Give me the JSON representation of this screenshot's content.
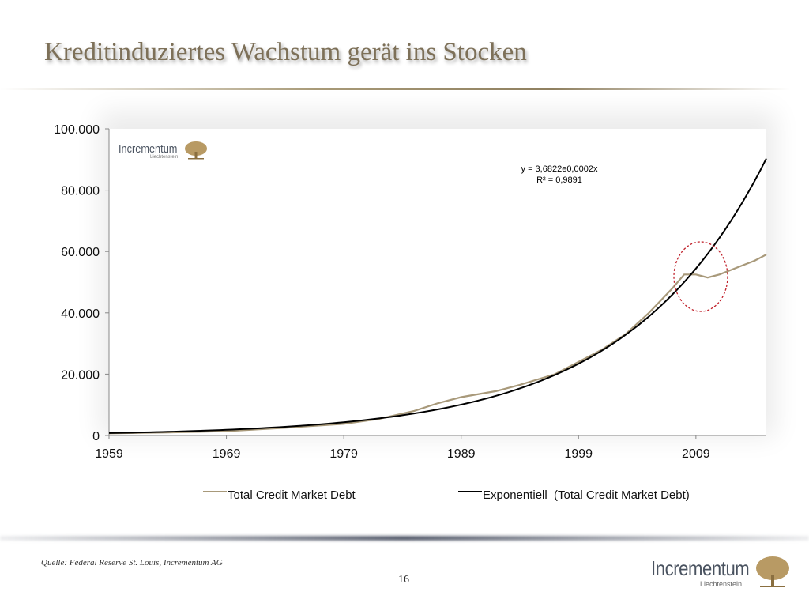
{
  "title": "Kreditinduziertes Wachstum gerät ins Stocken",
  "footer": {
    "source": "Quelle: Federal Reserve St. Louis, Incrementum AG",
    "page": "16",
    "logo_name": "Incrementum",
    "logo_sub": "Liechtenstein"
  },
  "chart_data": {
    "type": "line",
    "xlim": [
      1959,
      2015
    ],
    "ylim": [
      0,
      100000
    ],
    "x_ticks": [
      1959,
      1969,
      1979,
      1989,
      1999,
      2009
    ],
    "x_tick_labels": [
      "1959",
      "1969",
      "1979",
      "1989",
      "1999",
      "2009"
    ],
    "y_ticks": [
      0,
      20000,
      40000,
      60000,
      80000,
      100000
    ],
    "y_tick_labels": [
      "0",
      "20.000",
      "40.000",
      "60.000",
      "80.000",
      "100.000"
    ],
    "trendline": {
      "equation": "y = 3,6822e0,0002x",
      "r2": "R² = 0,9891"
    },
    "annotation": "dashed red ellipse around 2008-2010",
    "legend_position": "bottom",
    "series": [
      {
        "name": "Total Credit Market Debt",
        "color": "#a8997a",
        "x": [
          1959,
          1964,
          1969,
          1974,
          1979,
          1982,
          1985,
          1987,
          1989,
          1992,
          1994,
          1997,
          1999,
          2001,
          2003,
          2005,
          2007,
          2008,
          2009,
          2010,
          2011,
          2012,
          2013,
          2014,
          2015
        ],
        "values": [
          700,
          1000,
          1400,
          2500,
          3800,
          5400,
          8000,
          10500,
          12500,
          14500,
          16500,
          20000,
          24000,
          28000,
          33000,
          40000,
          48000,
          52500,
          52500,
          51500,
          52500,
          54000,
          55500,
          57000,
          59000
        ]
      },
      {
        "name": "Exponentiell  (Total Credit Market Debt)",
        "color": "#000000",
        "model": "exponential",
        "start_value": 800,
        "growth_rate": 0.0844
      }
    ]
  }
}
